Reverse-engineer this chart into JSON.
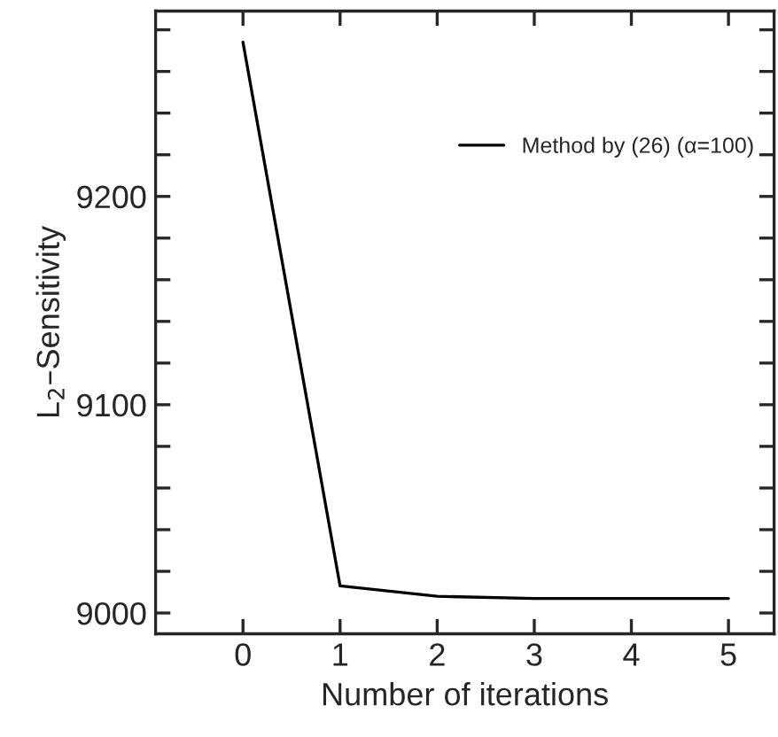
{
  "chart_data": {
    "type": "line",
    "xlabel": "Number of iterations",
    "ylabel": "L$_{2}$–Sensitivity",
    "x": [
      0,
      1,
      2,
      3,
      4,
      5
    ],
    "series": [
      {
        "name": "Method by (26) (α=100)",
        "color": "#000000",
        "values": [
          9274,
          9013,
          9008,
          9007,
          9007,
          9007
        ]
      }
    ],
    "xlim": [
      -0.9,
      5.47
    ],
    "ylim": [
      8990,
      9289
    ],
    "xticks": [
      0,
      1,
      2,
      3,
      4,
      5
    ],
    "yticks": [
      9000,
      {
        "value": 9020,
        "label": null
      },
      {
        "value": 9040,
        "label": null
      },
      {
        "value": 9060,
        "label": null
      },
      {
        "value": 9080,
        "label": null
      },
      9100,
      {
        "value": 9120,
        "label": null
      },
      {
        "value": 9140,
        "label": null
      },
      {
        "value": 9160,
        "label": null
      },
      {
        "value": 9180,
        "label": null
      },
      9200,
      {
        "value": 9220,
        "label": null
      },
      {
        "value": 9240,
        "label": null
      },
      {
        "value": 9260,
        "label": null
      },
      {
        "value": 9280,
        "label": null
      }
    ],
    "legend": "top right",
    "grid": false,
    "marker": "none",
    "line_style": "solid"
  }
}
